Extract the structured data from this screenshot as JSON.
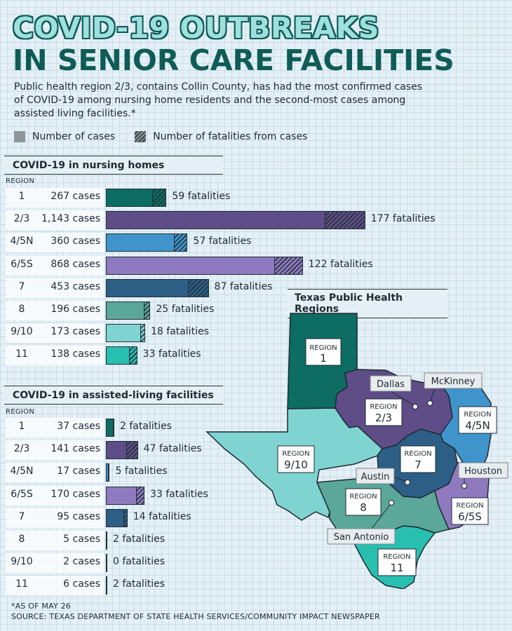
{
  "header": {
    "title_line1": "COVID-19 OUTBREAKS",
    "title_line2": "IN SENIOR CARE FACILITIES",
    "intro": "Public health region 2/3, contains Collin County, has had the most confirmed cases of COVID-19 among nursing home residents and the second-most cases among assisted living facilities.*"
  },
  "legend": {
    "cases_label": "Number of cases",
    "fatalities_label": "Number of fatalities from cases"
  },
  "colors": {
    "1": "#0d6d63",
    "2/3": "#5e4d86",
    "4/5N": "#3f94cb",
    "6/5S": "#8f79bf",
    "7": "#2d5f86",
    "8": "#5ba79a",
    "9/10": "#7fd4d1",
    "11": "#28bfb0"
  },
  "nursing": {
    "title": "COVID-19  in nursing homes",
    "region_header": "REGION"
  },
  "assisted": {
    "title": "COVID-19  in assisted-living facilities",
    "region_header": "REGION"
  },
  "chart_data": [
    {
      "type": "bar",
      "title": "COVID-19 in nursing homes",
      "categories": [
        "1",
        "2/3",
        "4/5N",
        "6/5S",
        "7",
        "8",
        "9/10",
        "11"
      ],
      "series": [
        {
          "name": "Number of cases",
          "values": [
            267,
            1143,
            360,
            868,
            453,
            196,
            173,
            138
          ]
        },
        {
          "name": "Number of fatalities from cases",
          "values": [
            59,
            177,
            57,
            122,
            87,
            25,
            18,
            33
          ]
        }
      ],
      "case_labels": [
        "267 cases",
        "1,143 cases",
        "360 cases",
        "868 cases",
        "453 cases",
        "196 cases",
        "173 cases",
        "138 cases"
      ],
      "fatality_labels": [
        "59 fatalities",
        "177 fatalities",
        "57 fatalities",
        "122 fatalities",
        "87 fatalities",
        "25 fatalities",
        "18 fatalities",
        "33 fatalities"
      ]
    },
    {
      "type": "bar",
      "title": "COVID-19 in assisted-living facilities",
      "categories": [
        "1",
        "2/3",
        "4/5N",
        "6/5S",
        "7",
        "8",
        "9/10",
        "11"
      ],
      "series": [
        {
          "name": "Number of cases",
          "values": [
            37,
            141,
            17,
            170,
            95,
            5,
            2,
            6
          ]
        },
        {
          "name": "Number of fatalities from cases",
          "values": [
            2,
            47,
            5,
            33,
            14,
            2,
            0,
            2
          ]
        }
      ],
      "case_labels": [
        "37 cases",
        "141 cases",
        "17 cases",
        "170 cases",
        "95 cases",
        "5 cases",
        "2 cases",
        "6 cases"
      ],
      "fatality_labels": [
        "2 fatalities",
        "47 fatalities",
        "5 fatalities",
        "33 fatalities",
        "14 fatalities",
        "2 fatalities",
        "0 fatalities",
        "2 fatalities"
      ]
    }
  ],
  "map": {
    "title": "Texas Public Health Regions",
    "region_word": "REGION",
    "regions": [
      "1",
      "2/3",
      "4/5N",
      "9/10",
      "7",
      "8",
      "6/5S",
      "11"
    ],
    "cities": [
      "Dallas",
      "McKinney",
      "Austin",
      "Houston",
      "San Antonio"
    ]
  },
  "footer": {
    "note": "*AS OF MAY 26",
    "source": "SOURCE: TEXAS DEPARTMENT OF STATE HEALTH SERVICES/COMMUNITY IMPACT NEWSPAPER"
  }
}
